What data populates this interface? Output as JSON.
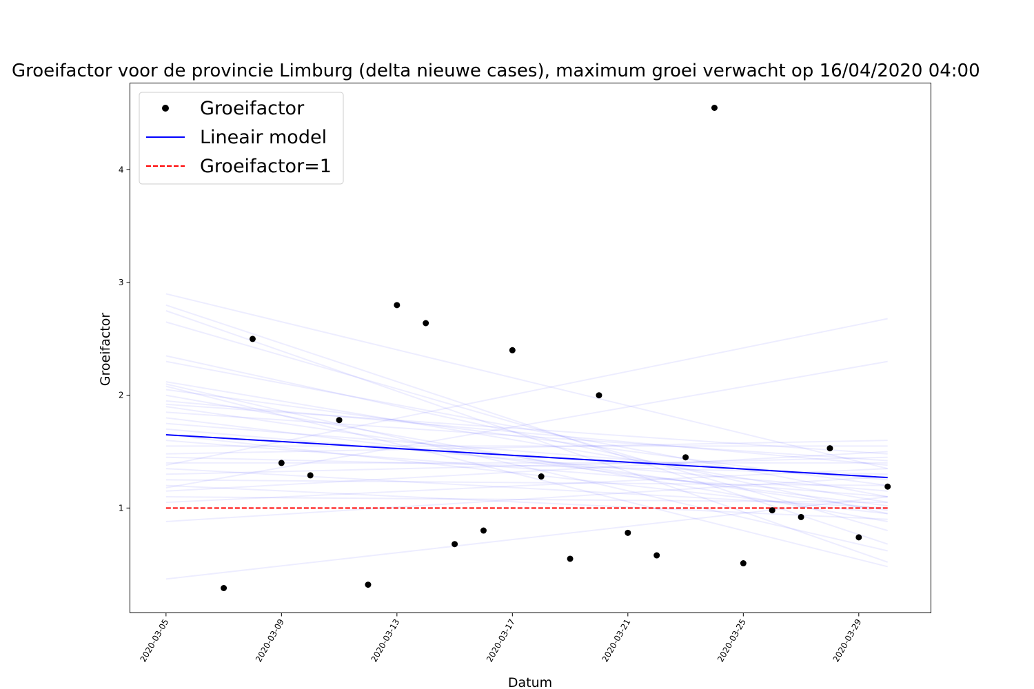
{
  "chart_data": {
    "type": "scatter",
    "title": "Groeifactor voor de provincie Limburg (delta nieuwe cases), maximum groei verwacht op 16/04/2020 04:00",
    "xlabel": "Datum",
    "ylabel": "Groeifactor",
    "xlim": [
      "2020-03-03T18:00",
      "2020-03-31T12:00"
    ],
    "ylim": [
      0.07,
      4.77
    ],
    "x_ticks": [
      "2020-03-05",
      "2020-03-09",
      "2020-03-13",
      "2020-03-17",
      "2020-03-21",
      "2020-03-25",
      "2020-03-29"
    ],
    "y_ticks": [
      1,
      2,
      3,
      4
    ],
    "grid": false,
    "legend": {
      "position": "top-left",
      "entries": [
        "Groeifactor",
        "Lineair model",
        "Groeifactor=1"
      ]
    },
    "series": [
      {
        "name": "Groeifactor",
        "kind": "points",
        "color": "#000000",
        "points": [
          {
            "x": "2020-03-07",
            "y": 0.29
          },
          {
            "x": "2020-03-08",
            "y": 2.5
          },
          {
            "x": "2020-03-09",
            "y": 1.4
          },
          {
            "x": "2020-03-10",
            "y": 1.29
          },
          {
            "x": "2020-03-11",
            "y": 1.78
          },
          {
            "x": "2020-03-12",
            "y": 0.32
          },
          {
            "x": "2020-03-13",
            "y": 2.8
          },
          {
            "x": "2020-03-14",
            "y": 2.64
          },
          {
            "x": "2020-03-15",
            "y": 0.68
          },
          {
            "x": "2020-03-16",
            "y": 0.8
          },
          {
            "x": "2020-03-17",
            "y": 2.4
          },
          {
            "x": "2020-03-18",
            "y": 1.28
          },
          {
            "x": "2020-03-19",
            "y": 0.55
          },
          {
            "x": "2020-03-20",
            "y": 2.0
          },
          {
            "x": "2020-03-21",
            "y": 0.78
          },
          {
            "x": "2020-03-22",
            "y": 0.58
          },
          {
            "x": "2020-03-23",
            "y": 1.45
          },
          {
            "x": "2020-03-24",
            "y": 4.55
          },
          {
            "x": "2020-03-25",
            "y": 0.51
          },
          {
            "x": "2020-03-26",
            "y": 0.98
          },
          {
            "x": "2020-03-27",
            "y": 0.92
          },
          {
            "x": "2020-03-28",
            "y": 1.53
          },
          {
            "x": "2020-03-29",
            "y": 0.74
          },
          {
            "x": "2020-03-30",
            "y": 1.19
          }
        ]
      },
      {
        "name": "Lineair model",
        "kind": "line",
        "color": "#0000ff",
        "points": [
          {
            "x": "2020-03-05",
            "y": 1.65
          },
          {
            "x": "2020-03-30",
            "y": 1.27
          }
        ]
      },
      {
        "name": "Groeifactor=1",
        "kind": "dashed-line",
        "color": "#ff0000",
        "points": [
          {
            "x": "2020-03-05",
            "y": 1.0
          },
          {
            "x": "2020-03-30",
            "y": 1.0
          }
        ]
      }
    ],
    "bootstrap_lines": {
      "color": "#0000ff",
      "opacity": 0.07,
      "x_range": [
        "2020-03-05",
        "2020-03-30"
      ],
      "lines": [
        [
          2.9,
          1.35
        ],
        [
          2.8,
          0.68
        ],
        [
          2.75,
          0.52
        ],
        [
          2.65,
          0.8
        ],
        [
          2.35,
          0.95
        ],
        [
          2.3,
          1.1
        ],
        [
          2.12,
          1.05
        ],
        [
          2.1,
          0.62
        ],
        [
          2.05,
          1.2
        ],
        [
          2.0,
          0.88
        ],
        [
          1.95,
          1.38
        ],
        [
          1.9,
          0.98
        ],
        [
          1.85,
          1.42
        ],
        [
          1.8,
          1.02
        ],
        [
          1.75,
          1.25
        ],
        [
          1.7,
          1.15
        ],
        [
          1.65,
          0.95
        ],
        [
          1.6,
          1.1
        ],
        [
          1.55,
          1.55
        ],
        [
          1.48,
          1.6
        ],
        [
          1.45,
          1.3
        ],
        [
          1.4,
          1.4
        ],
        [
          1.38,
          2.68
        ],
        [
          1.35,
          1.0
        ],
        [
          1.3,
          1.45
        ],
        [
          1.25,
          1.2
        ],
        [
          1.2,
          0.9
        ],
        [
          1.18,
          2.3
        ],
        [
          1.15,
          1.5
        ],
        [
          1.1,
          1.05
        ],
        [
          1.05,
          1.35
        ],
        [
          0.88,
          1.28
        ],
        [
          0.37,
          1.1
        ],
        [
          2.08,
          0.48
        ],
        [
          1.92,
          1.48
        ]
      ]
    }
  }
}
